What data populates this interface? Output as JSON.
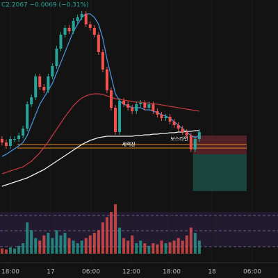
{
  "chart_data": {
    "type": "candlestick",
    "header": "C2.2067 −0.0069 (−0.31%)",
    "xlim": [
      -1.55,
      39.83
    ],
    "xticks": [
      {
        "value": 0,
        "label": "18:00"
      },
      {
        "value": 6,
        "label": "17"
      },
      {
        "value": 12,
        "label": "06:00"
      },
      {
        "value": 18,
        "label": "12:00"
      },
      {
        "value": 24,
        "label": "18:00"
      },
      {
        "value": 30,
        "label": "18"
      },
      {
        "value": 36,
        "label": "06:00"
      }
    ],
    "ylim": [
      2.1067,
      2.3967
    ],
    "up_color": "#26a69a",
    "down_color": "#ef5350",
    "x": [
      -1.25,
      -0.625,
      0,
      0.625,
      1.25,
      1.875,
      2.5,
      3.125,
      3.75,
      4.375,
      5,
      5.625,
      6.25,
      6.875,
      7.5,
      8.125,
      8.75,
      9.375,
      10,
      10.625,
      11.25,
      11.875,
      12.5,
      13.125,
      13.75,
      14.375,
      15,
      15.625,
      16.25,
      16.875,
      17.5,
      18.125,
      18.75,
      19.375,
      20,
      20.625,
      21.25,
      21.875,
      22.5,
      23.125,
      23.75,
      24.375,
      25,
      25.625,
      26.25,
      26.875,
      27.5,
      28.125
    ],
    "open": [
      2.1967,
      2.1917,
      2.1867,
      2.1967,
      2.1967,
      2.2017,
      2.2117,
      2.2467,
      2.2567,
      2.2867,
      2.2717,
      2.2667,
      2.2867,
      2.3017,
      2.3267,
      2.3467,
      2.3567,
      2.3517,
      2.3667,
      2.3717,
      2.3767,
      2.3617,
      2.3567,
      2.3467,
      2.3217,
      2.2967,
      2.2667,
      2.2417,
      2.2067,
      2.2517,
      2.2467,
      2.2417,
      2.2367,
      2.2467,
      2.2487,
      2.2417,
      2.2467,
      2.2367,
      2.2317,
      2.2267,
      2.2287,
      2.2217,
      2.2167,
      2.2117,
      2.2067,
      2.2017,
      2.1817,
      2.1967
    ],
    "high": [
      2.2007,
      2.1957,
      2.2007,
      2.2007,
      2.2057,
      2.2157,
      2.2507,
      2.2607,
      2.2907,
      2.2907,
      2.2757,
      2.2907,
      2.3057,
      2.3307,
      2.3507,
      2.3607,
      2.3607,
      2.3707,
      2.3757,
      2.3807,
      2.3807,
      2.3657,
      2.3607,
      2.3507,
      2.3257,
      2.3007,
      2.2707,
      2.2457,
      2.2557,
      2.2557,
      2.2507,
      2.2457,
      2.2507,
      2.2527,
      2.2527,
      2.2507,
      2.2507,
      2.2407,
      2.2357,
      2.2327,
      2.2327,
      2.2257,
      2.2207,
      2.2157,
      2.2107,
      2.2057,
      2.2007,
      2.2107
    ],
    "low": [
      2.1877,
      2.1827,
      2.1827,
      2.1927,
      2.1927,
      2.1977,
      2.2077,
      2.2427,
      2.2527,
      2.2677,
      2.2627,
      2.2627,
      2.2827,
      2.2977,
      2.3227,
      2.3427,
      2.3477,
      2.3477,
      2.3627,
      2.3677,
      2.3577,
      2.3527,
      2.3427,
      2.3177,
      2.2927,
      2.2627,
      2.2377,
      2.2027,
      2.2027,
      2.2427,
      2.2377,
      2.2327,
      2.2327,
      2.2427,
      2.2377,
      2.2377,
      2.2327,
      2.2277,
      2.2227,
      2.2227,
      2.2177,
      2.2127,
      2.2077,
      2.2027,
      2.1977,
      2.1777,
      2.1777,
      2.1927
    ],
    "close": [
      2.1917,
      2.1867,
      2.1967,
      2.1967,
      2.2017,
      2.2117,
      2.2467,
      2.2567,
      2.2867,
      2.2717,
      2.2667,
      2.2867,
      2.3017,
      2.3267,
      2.3467,
      2.3567,
      2.3517,
      2.3667,
      2.3717,
      2.3767,
      2.3617,
      2.3567,
      2.3467,
      2.3217,
      2.2967,
      2.2667,
      2.2417,
      2.2067,
      2.2517,
      2.2467,
      2.2417,
      2.2367,
      2.2467,
      2.2487,
      2.2417,
      2.2467,
      2.2367,
      2.2317,
      2.2267,
      2.2287,
      2.2217,
      2.2167,
      2.2117,
      2.2067,
      2.2017,
      2.1817,
      2.1967,
      2.2067
    ],
    "lines": [
      {
        "color": "#4a90d9",
        "values": [
          2.1717,
          2.1747,
          2.1787,
          2.1827,
          2.1867,
          2.1917,
          2.2017,
          2.2167,
          2.2317,
          2.2467,
          2.2567,
          2.2667,
          2.2767,
          2.2917,
          2.3067,
          2.3217,
          2.3367,
          2.3517,
          2.3617,
          2.3717,
          2.3767,
          2.3767,
          2.3717,
          2.3617,
          2.3417,
          2.3117,
          2.2867,
          2.2617,
          2.2517,
          2.2467,
          2.2447,
          2.2417,
          2.2417,
          2.2417,
          2.2387,
          2.2387,
          2.2367,
          2.2347,
          2.2317,
          2.2297,
          2.2267,
          2.2217,
          2.2167,
          2.2117,
          2.2067,
          2.2017,
          2.1987,
          2.2017
        ]
      },
      {
        "color": "#c0393f",
        "values": [
          2.1467,
          2.1487,
          2.1507,
          2.1527,
          2.1547,
          2.1567,
          2.1607,
          2.1647,
          2.1707,
          2.1767,
          2.1847,
          2.1927,
          2.2017,
          2.2107,
          2.2197,
          2.2287,
          2.2367,
          2.2447,
          2.2507,
          2.2557,
          2.2587,
          2.2607,
          2.2617,
          2.2617,
          2.2607,
          2.2587,
          2.2567,
          2.2547,
          2.2537,
          2.2527,
          2.2517,
          2.2507,
          2.2497,
          2.2497,
          2.2487,
          2.2487,
          2.2477,
          2.2467,
          2.2457,
          2.2447,
          2.2437,
          2.2427,
          2.2417,
          2.2407,
          2.2397,
          2.2387,
          2.2377,
          2.2367
        ]
      },
      {
        "color": "#f2f2f2",
        "values": [
          2.1287,
          2.1307,
          2.1327,
          2.1347,
          2.1367,
          2.1387,
          2.1407,
          2.1437,
          2.1467,
          2.1497,
          2.1527,
          2.1567,
          2.1607,
          2.1647,
          2.1687,
          2.1727,
          2.1767,
          2.1807,
          2.1847,
          2.1887,
          2.1917,
          2.1947,
          2.1967,
          2.1987,
          2.1997,
          2.2007,
          2.2007,
          2.2007,
          2.2007,
          2.2007,
          2.2007,
          2.2007,
          2.2017,
          2.2017,
          2.2027,
          2.2027,
          2.2037,
          2.2037,
          2.2047,
          2.2047,
          2.2057,
          2.2057,
          2.2067,
          2.2067,
          2.2077,
          2.2077,
          2.2087,
          2.2087
        ]
      }
    ],
    "levels": [
      {
        "value": 2.1887,
        "x": [
          1.03,
          35.17
        ],
        "color": "#e8871e"
      },
      {
        "value": 2.1837,
        "x": [
          1.03,
          35.17
        ],
        "color": "#e8871e"
      }
    ],
    "position": {
      "x": [
        27.17,
        35.17
      ],
      "stop": 2.2017,
      "entry": 2.1747,
      "target": 2.1217
    },
    "annotations": [
      {
        "text": "세력장",
        "x": 17.6,
        "y": 2.1887
      },
      {
        "text": "보스라인",
        "x": 25.15,
        "y": 2.1967
      }
    ],
    "volume": {
      "ylim": [
        0,
        100
      ],
      "values": [
        10,
        8,
        12,
        10,
        15,
        20,
        60,
        45,
        30,
        25,
        35,
        40,
        30,
        45,
        35,
        40,
        30,
        25,
        20,
        25,
        30,
        35,
        40,
        45,
        60,
        70,
        80,
        95,
        50,
        30,
        25,
        35,
        20,
        25,
        20,
        15,
        20,
        18,
        25,
        20,
        22,
        25,
        30,
        25,
        35,
        50,
        40,
        25
      ]
    }
  }
}
